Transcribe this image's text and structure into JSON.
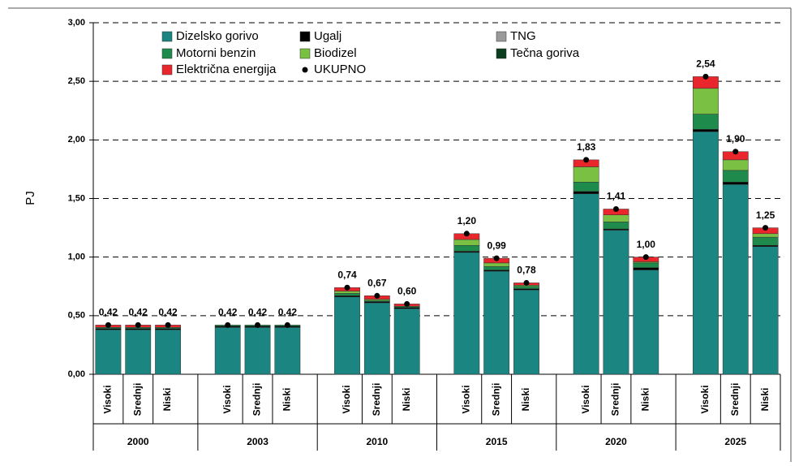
{
  "chart_data": {
    "type": "bar",
    "stacked": true,
    "ylabel": "PJ",
    "ylim": [
      0,
      3
    ],
    "yticks": [
      {
        "value": 0,
        "label": "0,00"
      },
      {
        "value": 0.5,
        "label": "0,50"
      },
      {
        "value": 1,
        "label": "1,00"
      },
      {
        "value": 1.5,
        "label": "1,50"
      },
      {
        "value": 2,
        "label": "2,00"
      },
      {
        "value": 2.5,
        "label": "2,50"
      },
      {
        "value": 3,
        "label": "3,00"
      }
    ],
    "grid": true,
    "categories": [
      "Visoki",
      "Srednji",
      "Niski",
      "Visoki",
      "Srednji",
      "Niski",
      "Visoki",
      "Srednji",
      "Niski",
      "Visoki",
      "Srednji",
      "Niski",
      "Visoki",
      "Srednji",
      "Niski",
      "Visoki",
      "Srednji",
      "Niski"
    ],
    "groups": [
      "2000",
      "2003",
      "2010",
      "2015",
      "2020",
      "2025"
    ],
    "series": [
      {
        "name": "Dizelsko gorivo",
        "color": "#1b8582",
        "values": [
          0.38,
          0.38,
          0.38,
          0.4,
          0.4,
          0.4,
          0.66,
          0.61,
          0.56,
          1.04,
          0.88,
          0.72,
          1.54,
          1.23,
          0.89,
          2.07,
          1.62,
          1.09
        ]
      },
      {
        "name": "Ugalj",
        "color": "#000000",
        "values": [
          0.01,
          0.01,
          0.01,
          0.01,
          0.01,
          0.01,
          0.01,
          0.01,
          0.01,
          0.01,
          0.01,
          0.01,
          0.02,
          0.01,
          0.02,
          0.02,
          0.02,
          0.01
        ]
      },
      {
        "name": "TNG",
        "color": "#9a9a9a",
        "values": [
          0,
          0,
          0,
          0,
          0,
          0,
          0,
          0,
          0,
          0,
          0,
          0,
          0,
          0,
          0,
          0,
          0,
          0
        ]
      },
      {
        "name": "Motorni benzin",
        "color": "#1e8b4c",
        "values": [
          0.01,
          0.01,
          0.01,
          0.01,
          0.01,
          0.01,
          0.02,
          0.01,
          0.01,
          0.05,
          0.03,
          0.02,
          0.08,
          0.06,
          0.04,
          0.13,
          0.1,
          0.07
        ]
      },
      {
        "name": "Biodizel",
        "color": "#7ac143",
        "values": [
          0,
          0,
          0,
          0,
          0,
          0,
          0.02,
          0.01,
          0,
          0.05,
          0.03,
          0.01,
          0.13,
          0.06,
          0.01,
          0.22,
          0.09,
          0.03
        ]
      },
      {
        "name": "Tečna goriva",
        "color": "#0b3d1f",
        "values": [
          0,
          0,
          0,
          0,
          0,
          0,
          0,
          0,
          0,
          0,
          0,
          0,
          0,
          0,
          0,
          0,
          0,
          0
        ]
      },
      {
        "name": "Električna energija",
        "color": "#e8262c",
        "values": [
          0.02,
          0.02,
          0.02,
          0,
          0,
          0,
          0.03,
          0.03,
          0.02,
          0.05,
          0.04,
          0.02,
          0.06,
          0.05,
          0.04,
          0.1,
          0.07,
          0.05
        ]
      }
    ],
    "total": {
      "name": "UKUPNO",
      "color": "#000000",
      "values": [
        0.42,
        0.42,
        0.42,
        0.42,
        0.42,
        0.42,
        0.74,
        0.67,
        0.6,
        1.2,
        0.99,
        0.78,
        1.83,
        1.41,
        1.0,
        2.54,
        1.9,
        1.25
      ],
      "value_labels": [
        "0,42",
        "0,42",
        "0,42",
        "0,42",
        "0,42",
        "0,42",
        "0,74",
        "0,67",
        "0,60",
        "1,20",
        "0,99",
        "0,78",
        "1,83",
        "1,41",
        "1,00",
        "2,54",
        "1,90",
        "1,25"
      ]
    }
  }
}
